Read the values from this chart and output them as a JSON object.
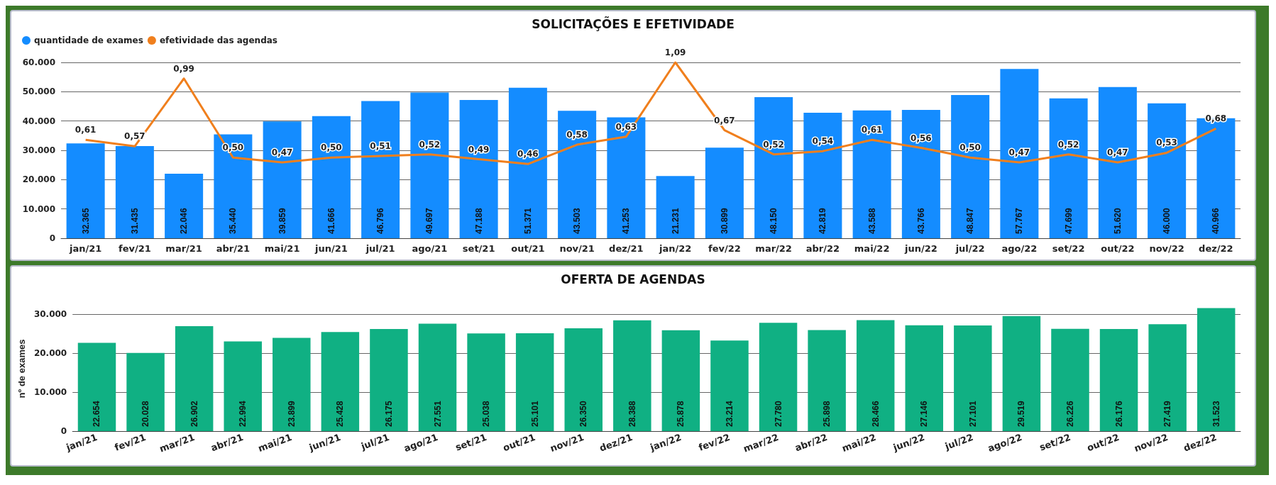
{
  "chart_data": [
    {
      "type": "bar",
      "title": "SOLICITAÇÕES E EFETIVIDADE",
      "categories": [
        "jan/21",
        "fev/21",
        "mar/21",
        "abr/21",
        "mai/21",
        "jun/21",
        "jul/21",
        "ago/21",
        "set/21",
        "out/21",
        "nov/21",
        "dez/21",
        "jan/22",
        "fev/22",
        "mar/22",
        "abr/22",
        "mai/22",
        "jun/22",
        "jul/22",
        "ago/22",
        "set/22",
        "out/22",
        "nov/22",
        "dez/22"
      ],
      "series": [
        {
          "name": "quantidade de exames",
          "color": "#148cff",
          "values": [
            32365,
            31435,
            22046,
            35440,
            39859,
            41666,
            46796,
            49697,
            47188,
            51371,
            43503,
            41253,
            21231,
            30899,
            48150,
            42819,
            43588,
            43766,
            48847,
            57767,
            47699,
            51620,
            46000,
            40966
          ],
          "value_labels": [
            "32.365",
            "31.435",
            "22.046",
            "35.440",
            "39.859",
            "41.666",
            "46.796",
            "49.697",
            "47.188",
            "51.371",
            "43.503",
            "41.253",
            "21.231",
            "30.899",
            "48.150",
            "42.819",
            "43.588",
            "43.766",
            "48.847",
            "57.767",
            "47.699",
            "51.620",
            "46.000",
            "40.966"
          ]
        },
        {
          "name": "efetividade das agendas",
          "type": "line",
          "axis": "y2",
          "color": "#f07f1d",
          "values": [
            0.61,
            0.57,
            0.99,
            0.5,
            0.47,
            0.5,
            0.51,
            0.52,
            0.49,
            0.46,
            0.58,
            0.63,
            1.09,
            0.67,
            0.52,
            0.54,
            0.61,
            0.56,
            0.5,
            0.47,
            0.52,
            0.47,
            0.53,
            0.68
          ],
          "value_labels": [
            "0,61",
            "0,57",
            "0,99",
            "0,50",
            "0,47",
            "0,50",
            "0,51",
            "0,52",
            "0,49",
            "0,46",
            "0,58",
            "0,63",
            "1,09",
            "0,67",
            "0,52",
            "0,54",
            "0,61",
            "0,56",
            "0,50",
            "0,47",
            "0,52",
            "0,47",
            "0,53",
            "0,68"
          ]
        }
      ],
      "ylim": [
        0,
        60000
      ],
      "yticks": [
        0,
        {
          "value": 10000,
          "label": "10.000"
        },
        {
          "value": 20000,
          "label": "20.000"
        },
        {
          "value": 30000,
          "label": "30.000"
        },
        {
          "value": 40000,
          "label": "40.000"
        },
        {
          "value": 50000,
          "label": "50.000"
        },
        {
          "value": 60000,
          "label": "60.000"
        }
      ],
      "grid": "y",
      "legend": "top left",
      "marker": "none"
    },
    {
      "type": "bar",
      "title": "OFERTA DE AGENDAS",
      "ylabel": "nº de exames",
      "categories": [
        "jan/21",
        "fev/21",
        "mar/21",
        "abr/21",
        "mai/21",
        "jun/21",
        "jul/21",
        "ago/21",
        "set/21",
        "out/21",
        "nov/21",
        "dez/21",
        "jan/22",
        "fev/22",
        "mar/22",
        "abr/22",
        "mai/22",
        "jun/22",
        "jul/22",
        "ago/22",
        "set/22",
        "out/22",
        "nov/22",
        "dez/22"
      ],
      "series": [
        {
          "color": "#10b083",
          "values": [
            22654,
            20028,
            26902,
            22994,
            23899,
            25428,
            26175,
            27551,
            25038,
            25101,
            26350,
            28388,
            25878,
            23214,
            27780,
            25898,
            28466,
            27146,
            27101,
            29519,
            26226,
            26176,
            27419,
            31523
          ],
          "value_labels": [
            "22.654",
            "20.028",
            "26.902",
            "22.994",
            "23.899",
            "25.428",
            "26.175",
            "27.551",
            "25.038",
            "25.101",
            "26.350",
            "28.388",
            "25.878",
            "23.214",
            "27.780",
            "25.898",
            "28.466",
            "27.146",
            "27.101",
            "29.519",
            "26.226",
            "26.176",
            "27.419",
            "31.523"
          ]
        }
      ],
      "ylim": [
        0,
        32000
      ],
      "yticks": [
        0,
        {
          "value": 10000,
          "label": "10.000"
        },
        {
          "value": 20000,
          "label": "20.000"
        },
        {
          "value": 30000,
          "label": "30.000"
        }
      ],
      "grid": "y",
      "legend": false
    }
  ]
}
